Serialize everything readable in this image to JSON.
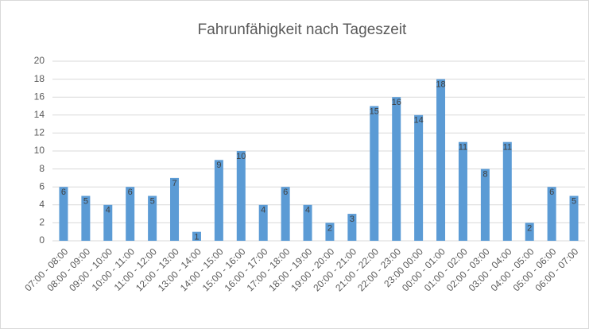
{
  "chart_data": {
    "type": "bar",
    "title": "Fahrunfähigkeit nach Tageszeit",
    "categories": [
      "07:00 - 08:00",
      "08:00 - 09:00",
      "09:00 - 10:00",
      "10:00 - 11:00",
      "11:00 - 12:00",
      "12:00 - 13:00",
      "13:00 - 14:00",
      "14:00 - 15:00",
      "15:00 - 16:00",
      "16:00 - 17:00",
      "17:00 - 18:00",
      "18:00 - 19:00",
      "19:00 - 20:00",
      "20:00 - 21:00",
      "21:00 - 22:00",
      "22:00 - 23:00",
      "23:00 00:00",
      "00:00 - 01:00",
      "01:00 - 02:00",
      "02:00 - 03:00",
      "03:00 - 04:00",
      "04:00 - 05:00",
      "05:00 - 06:00",
      "06:00 - 07:00"
    ],
    "values": [
      6,
      5,
      4,
      6,
      5,
      7,
      1,
      9,
      10,
      4,
      6,
      4,
      2,
      3,
      15,
      16,
      14,
      18,
      11,
      8,
      11,
      2,
      6,
      5
    ],
    "color": "#5b9bd5",
    "ylim": [
      0,
      20
    ],
    "yticks": [
      0,
      2,
      4,
      6,
      8,
      10,
      12,
      14,
      16,
      18,
      20
    ],
    "grid": true
  }
}
